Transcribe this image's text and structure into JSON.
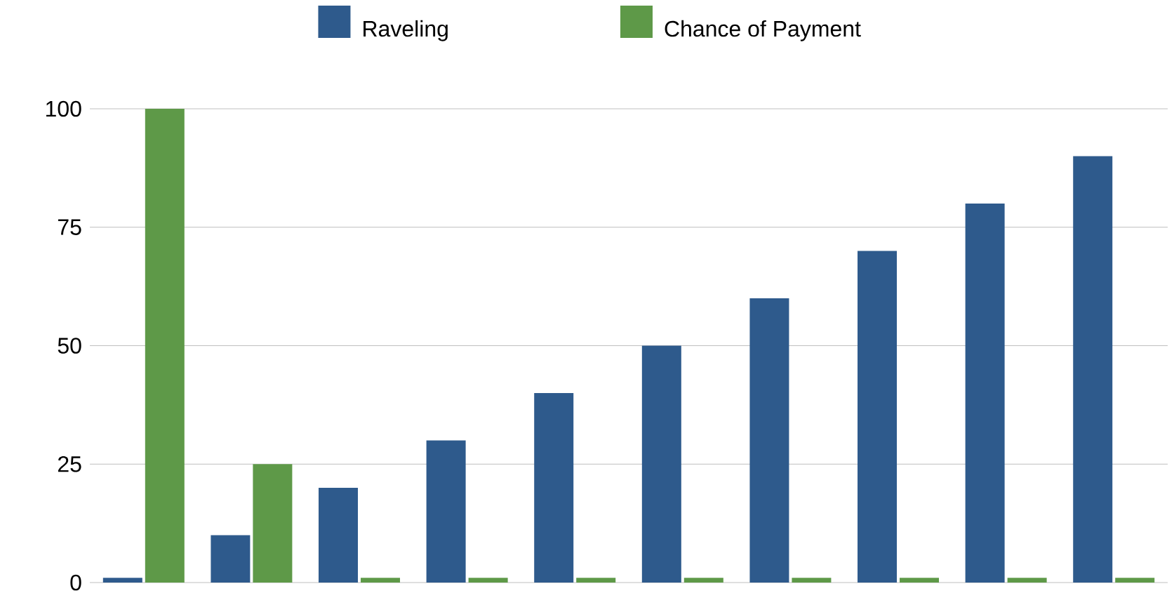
{
  "chart_data": {
    "type": "bar",
    "categories": [
      null,
      null,
      null,
      null,
      null,
      null,
      null,
      null,
      null,
      null
    ],
    "series": [
      {
        "name": "Raveling",
        "color": "#2e5a8c",
        "values": [
          1,
          10,
          20,
          30,
          40,
          50,
          60,
          70,
          80,
          90
        ]
      },
      {
        "name": "Chance of Payment",
        "color": "#5e9948",
        "values": [
          100,
          25,
          1,
          1,
          1,
          1,
          1,
          1,
          1,
          1
        ]
      }
    ],
    "ylim": [
      0,
      100
    ],
    "yticks": [
      0,
      25,
      50,
      75,
      100
    ],
    "grid": "y",
    "legend": "top"
  }
}
